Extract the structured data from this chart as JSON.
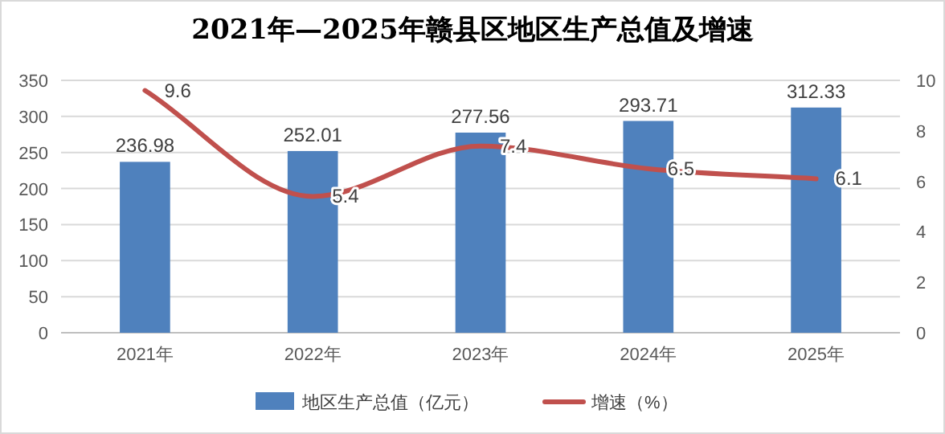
{
  "chart_data": {
    "type": "bar",
    "title": "2021年—2025年赣县区地区生产总值及增速",
    "categories": [
      "2021年",
      "2022年",
      "2023年",
      "2024年",
      "2025年"
    ],
    "series": [
      {
        "name": "地区生产总值（亿元）",
        "color": "#4f81bd",
        "values": [
          236.98,
          252.01,
          277.56,
          293.71,
          312.33
        ]
      },
      {
        "name": "增速（%）",
        "type": "line",
        "axis": "y2",
        "color": "#c0504d",
        "values": [
          9.6,
          5.4,
          7.4,
          6.5,
          6.1
        ]
      }
    ],
    "ylim": [
      0,
      350
    ],
    "yticks": [
      0,
      50,
      100,
      150,
      200,
      250,
      300,
      350
    ],
    "y2lim": [
      0,
      10
    ],
    "y2ticks": [
      0,
      2,
      4,
      6,
      8,
      10
    ],
    "data_labels": true,
    "grid": "y",
    "legend": "bottom",
    "marker": "none",
    "line_style": "solid"
  }
}
